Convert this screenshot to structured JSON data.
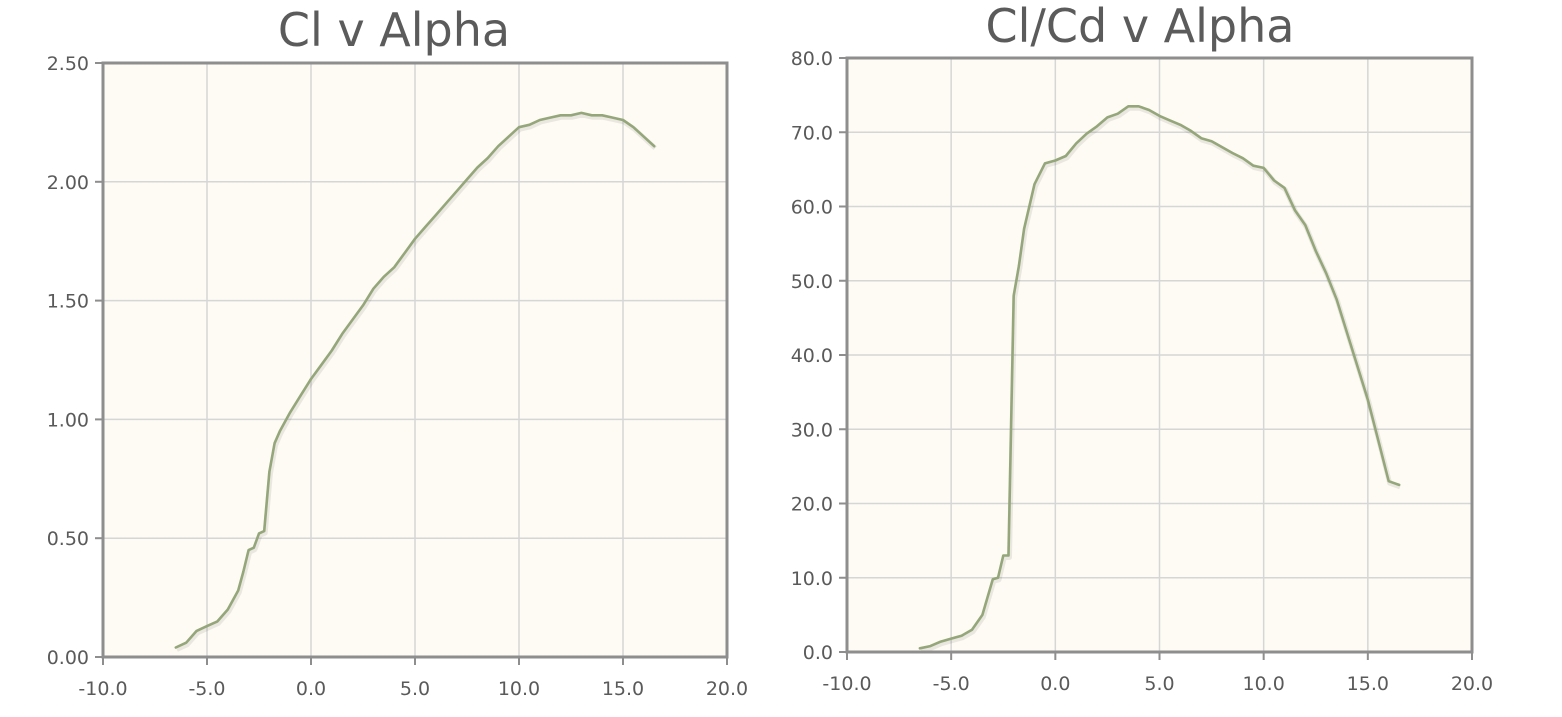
{
  "colors": {
    "series": "#94a67a",
    "background": "#fdfbf3",
    "grid": "#d6d6d6",
    "frame": "#8e8e8e"
  },
  "chart_data": [
    {
      "type": "line",
      "title": "Cl v Alpha",
      "xlabel": "",
      "ylabel": "",
      "xlim": [
        -10,
        20
      ],
      "ylim": [
        0,
        2.5
      ],
      "grid": true,
      "x_ticks": [
        "-10.0",
        "-5.0",
        "0.0",
        "5.0",
        "10.0",
        "15.0",
        "20.0"
      ],
      "y_ticks": [
        "0.00",
        "0.50",
        "1.00",
        "1.50",
        "2.00",
        "2.50"
      ],
      "series": [
        {
          "name": "Cl",
          "x": [
            -6.5,
            -6.0,
            -5.5,
            -5.0,
            -4.5,
            -4.0,
            -3.5,
            -3.25,
            -3.0,
            -2.75,
            -2.5,
            -2.25,
            -2.0,
            -1.75,
            -1.5,
            -1.0,
            -0.5,
            0.0,
            0.5,
            1.0,
            1.5,
            2.0,
            2.5,
            3.0,
            3.5,
            4.0,
            4.5,
            5.0,
            5.5,
            6.0,
            6.5,
            7.0,
            7.5,
            8.0,
            8.5,
            9.0,
            9.5,
            10.0,
            10.5,
            11.0,
            11.5,
            12.0,
            12.5,
            13.0,
            13.5,
            14.0,
            14.5,
            15.0,
            15.5,
            16.0,
            16.5
          ],
          "y": [
            0.04,
            0.06,
            0.11,
            0.13,
            0.15,
            0.2,
            0.28,
            0.36,
            0.45,
            0.46,
            0.52,
            0.53,
            0.78,
            0.9,
            0.95,
            1.03,
            1.1,
            1.17,
            1.23,
            1.29,
            1.36,
            1.42,
            1.48,
            1.55,
            1.6,
            1.64,
            1.7,
            1.76,
            1.81,
            1.86,
            1.91,
            1.96,
            2.01,
            2.06,
            2.1,
            2.15,
            2.19,
            2.23,
            2.24,
            2.26,
            2.27,
            2.28,
            2.28,
            2.29,
            2.28,
            2.28,
            2.27,
            2.26,
            2.23,
            2.19,
            2.15
          ]
        }
      ]
    },
    {
      "type": "line",
      "title": "Cl/Cd v Alpha",
      "xlabel": "",
      "ylabel": "",
      "xlim": [
        -10,
        20
      ],
      "ylim": [
        0,
        80
      ],
      "grid": true,
      "x_ticks": [
        "-10.0",
        "-5.0",
        "0.0",
        "5.0",
        "10.0",
        "15.0",
        "20.0"
      ],
      "y_ticks": [
        "0.0",
        "10.0",
        "20.0",
        "30.0",
        "40.0",
        "50.0",
        "60.0",
        "70.0",
        "80.0"
      ],
      "series": [
        {
          "name": "Cl/Cd",
          "x": [
            -6.5,
            -6.0,
            -5.5,
            -5.0,
            -4.5,
            -4.0,
            -3.5,
            -3.0,
            -2.75,
            -2.5,
            -2.25,
            -2.0,
            -1.75,
            -1.5,
            -1.0,
            -0.5,
            0.0,
            0.5,
            1.0,
            1.5,
            2.0,
            2.5,
            3.0,
            3.5,
            4.0,
            4.5,
            5.0,
            5.5,
            6.0,
            6.5,
            7.0,
            7.5,
            8.0,
            8.5,
            9.0,
            9.5,
            10.0,
            10.5,
            11.0,
            11.5,
            12.0,
            12.5,
            13.0,
            13.5,
            14.0,
            14.5,
            15.0,
            15.5,
            16.0,
            16.5
          ],
          "y": [
            0.5,
            0.8,
            1.4,
            1.8,
            2.2,
            3.0,
            5.0,
            9.8,
            10.0,
            13.0,
            13.0,
            48.0,
            52.0,
            57.0,
            63.0,
            65.8,
            66.2,
            66.8,
            68.5,
            69.8,
            70.8,
            72.0,
            72.5,
            73.5,
            73.5,
            73.0,
            72.2,
            71.6,
            71.0,
            70.2,
            69.2,
            68.8,
            68.0,
            67.2,
            66.5,
            65.5,
            65.2,
            63.5,
            62.5,
            59.5,
            57.5,
            54.0,
            51.0,
            47.5,
            43.0,
            38.5,
            34.0,
            28.5,
            23.0,
            22.5
          ]
        }
      ]
    }
  ]
}
